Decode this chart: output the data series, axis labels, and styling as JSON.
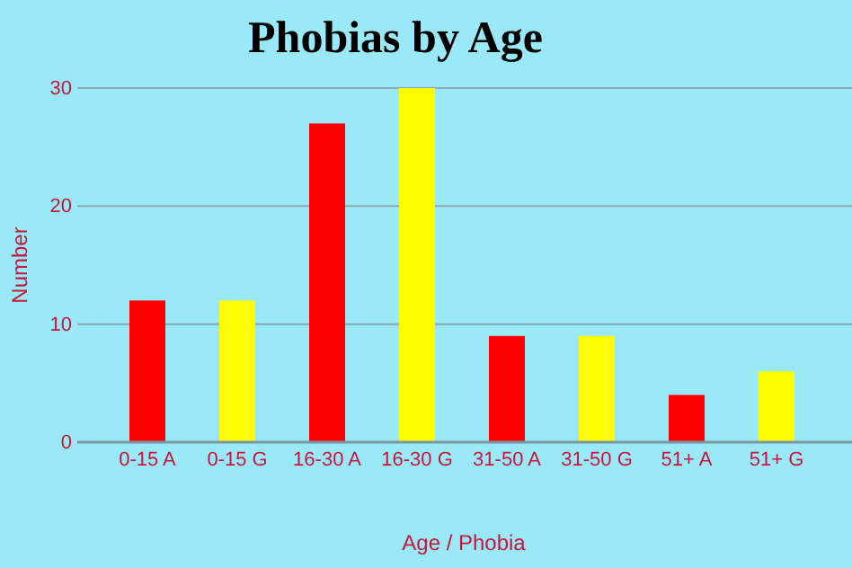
{
  "chart_data": {
    "type": "bar",
    "title": "Phobias by Age",
    "xlabel": "Age / Phobia",
    "ylabel": "Number",
    "categories": [
      "0-15 A",
      "0-15 G",
      "16-30 A",
      "16-30 G",
      "31-50 A",
      "31-50 G",
      "51+ A",
      "51+ G"
    ],
    "values": [
      12,
      12,
      27,
      30,
      9,
      9,
      4,
      6
    ],
    "colors": [
      "#ff0000",
      "#ffff00",
      "#ff0000",
      "#ffff00",
      "#ff0000",
      "#ffff00",
      "#ff0000",
      "#ffff00"
    ],
    "ylim": [
      0,
      30
    ],
    "yticks": [
      0,
      10,
      20,
      30
    ],
    "grid": "y"
  }
}
